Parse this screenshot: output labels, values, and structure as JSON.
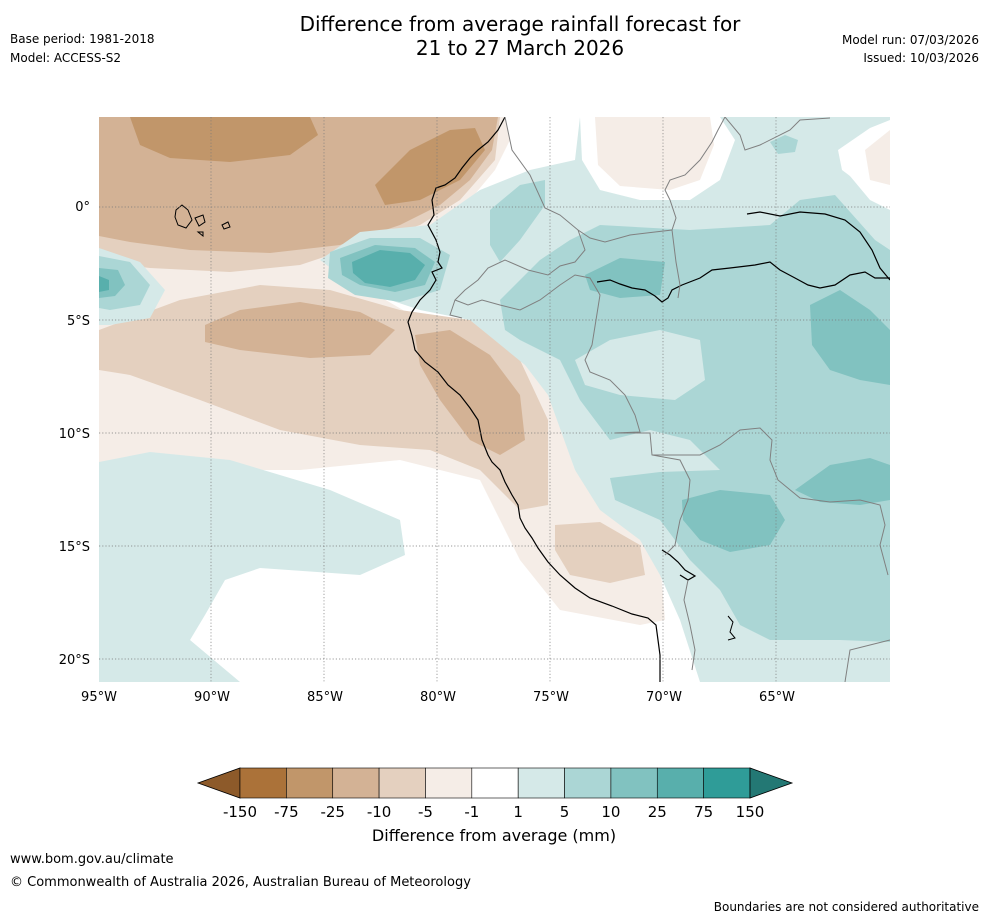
{
  "header": {
    "base_period": "Base period: 1981-2018",
    "model": "Model: ACCESS-S2",
    "title_line1": "Difference from average rainfall forecast for",
    "title_line2": "21 to 27 March 2026",
    "model_run": "Model run: 07/03/2026",
    "issued": "Issued: 10/03/2026"
  },
  "map": {
    "lon_labels": [
      "95°W",
      "90°W",
      "85°W",
      "80°W",
      "75°W",
      "70°W",
      "65°W"
    ],
    "lat_labels": [
      "0°",
      "5°S",
      "10°S",
      "15°S",
      "20°S"
    ],
    "lon_range": [
      -95,
      -60
    ],
    "lat_range": [
      -21,
      4
    ],
    "colors": {
      "dry_strong": "#c1966a",
      "dry_mid": "#d3b295",
      "dry_light": "#e4d0bf",
      "dry_faint": "#f5ede7",
      "neutral": "#ffffff",
      "wet_faint": "#d5e9e8",
      "wet_light": "#abd6d5",
      "wet_mid": "#81c2c0",
      "wet_strong": "#58afac",
      "coast": "#000000",
      "border": "#808080"
    }
  },
  "colorbar": {
    "ticks": [
      "-150",
      "-75",
      "-25",
      "-10",
      "-5",
      "-1",
      "1",
      "5",
      "10",
      "25",
      "75",
      "150"
    ],
    "colors": [
      "#ab7239",
      "#c1966a",
      "#d3b295",
      "#e4d0bf",
      "#f5ede7",
      "#ffffff",
      "#d5e9e8",
      "#abd6d5",
      "#81c2c0",
      "#58afac",
      "#2f9c98"
    ],
    "arrow_low": "#8d5a2a",
    "arrow_high": "#237874",
    "label": "Difference from average (mm)"
  },
  "footer": {
    "url": "www.bom.gov.au/climate",
    "copyright": "© Commonwealth of Australia 2026, Australian Bureau of Meteorology",
    "disclaimer": "Boundaries are not considered authoritative"
  }
}
